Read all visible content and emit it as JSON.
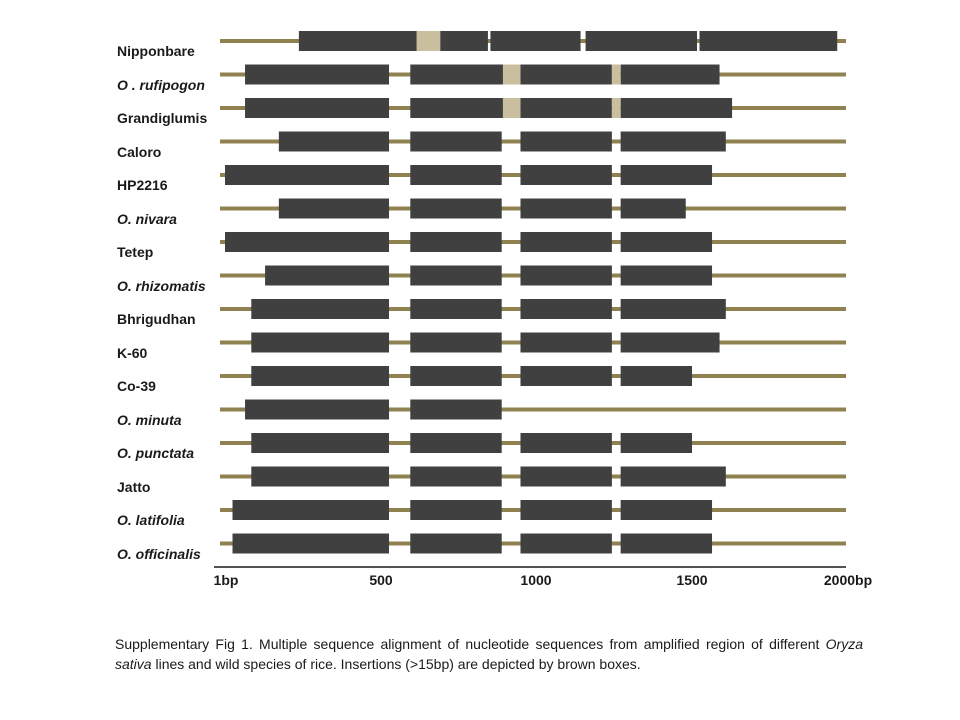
{
  "colors": {
    "backbone": "#8f8250",
    "segment": "#404040",
    "insertion": "#c9bf9e"
  },
  "tracks": [
    {
      "name": "Nipponbare",
      "italic": false,
      "segments": [
        [
          315,
          1070
        ],
        [
          1080,
          1440
        ],
        [
          1460,
          1905
        ],
        [
          1915,
          2465
        ]
      ],
      "insertions": [
        [
          785,
          880
        ]
      ]
    },
    {
      "name": "O . rufipogon",
      "italic": true,
      "segments": [
        [
          100,
          675
        ],
        [
          760,
          1130
        ],
        [
          1200,
          1565
        ],
        [
          1600,
          1995
        ]
      ],
      "insertions": [
        [
          1130,
          1200
        ],
        [
          1565,
          1600
        ]
      ]
    },
    {
      "name": "Grandiglumis",
      "italic": false,
      "segments": [
        [
          100,
          675
        ],
        [
          760,
          1130
        ],
        [
          1200,
          1565
        ],
        [
          1600,
          2045
        ]
      ],
      "insertions": [
        [
          1130,
          1200
        ],
        [
          1565,
          1600
        ]
      ]
    },
    {
      "name": "Caloro",
      "italic": false,
      "segments": [
        [
          235,
          675
        ],
        [
          760,
          1125
        ],
        [
          1200,
          1565
        ],
        [
          1600,
          2020
        ]
      ],
      "insertions": []
    },
    {
      "name": "HP2216",
      "italic": false,
      "segments": [
        [
          20,
          675
        ],
        [
          760,
          1125
        ],
        [
          1200,
          1565
        ],
        [
          1600,
          1965
        ]
      ],
      "insertions": []
    },
    {
      "name": "O. nivara",
      "italic": true,
      "segments": [
        [
          235,
          675
        ],
        [
          760,
          1125
        ],
        [
          1200,
          1565
        ],
        [
          1600,
          1860
        ]
      ],
      "insertions": []
    },
    {
      "name": "Tetep",
      "italic": false,
      "segments": [
        [
          20,
          675
        ],
        [
          760,
          1125
        ],
        [
          1200,
          1565
        ],
        [
          1600,
          1965
        ]
      ],
      "insertions": []
    },
    {
      "name": "O. rhizomatis",
      "italic": true,
      "segments": [
        [
          180,
          675
        ],
        [
          760,
          1125
        ],
        [
          1200,
          1565
        ],
        [
          1600,
          1965
        ]
      ],
      "insertions": []
    },
    {
      "name": "Bhrigudhan",
      "italic": false,
      "segments": [
        [
          125,
          675
        ],
        [
          760,
          1125
        ],
        [
          1200,
          1565
        ],
        [
          1600,
          2020
        ]
      ],
      "insertions": []
    },
    {
      "name": "K-60",
      "italic": false,
      "segments": [
        [
          125,
          675
        ],
        [
          760,
          1125
        ],
        [
          1200,
          1565
        ],
        [
          1600,
          1995
        ]
      ],
      "insertions": []
    },
    {
      "name": "Co-39",
      "italic": false,
      "segments": [
        [
          125,
          675
        ],
        [
          760,
          1125
        ],
        [
          1200,
          1565
        ],
        [
          1600,
          1885
        ]
      ],
      "insertions": []
    },
    {
      "name": "O. minuta",
      "italic": true,
      "segments": [
        [
          100,
          675
        ],
        [
          760,
          1125
        ]
      ],
      "insertions": []
    },
    {
      "name": "O. punctata",
      "italic": true,
      "segments": [
        [
          125,
          675
        ],
        [
          760,
          1125
        ],
        [
          1200,
          1565
        ],
        [
          1600,
          1885
        ]
      ],
      "insertions": []
    },
    {
      "name": "Jatto",
      "italic": false,
      "segments": [
        [
          125,
          675
        ],
        [
          760,
          1125
        ],
        [
          1200,
          1565
        ],
        [
          1600,
          2020
        ]
      ],
      "insertions": []
    },
    {
      "name": "O. latifolia",
      "italic": true,
      "segments": [
        [
          50,
          675
        ],
        [
          760,
          1125
        ],
        [
          1200,
          1565
        ],
        [
          1600,
          1965
        ]
      ],
      "insertions": []
    },
    {
      "name": "O. officinalis",
      "italic": true,
      "segments": [
        [
          50,
          675
        ],
        [
          760,
          1125
        ],
        [
          1200,
          1565
        ],
        [
          1600,
          1965
        ]
      ],
      "insertions": []
    }
  ],
  "axis": {
    "ticks": [
      {
        "value": 1,
        "label": "1bp"
      },
      {
        "value": 500,
        "label": "500"
      },
      {
        "value": 1000,
        "label": "1000"
      },
      {
        "value": 1500,
        "label": "1500"
      },
      {
        "value": 2000,
        "label": "2000bp"
      }
    ]
  },
  "caption": {
    "part1": "Supplementary Fig 1. Multiple sequence alignment of nucleotide sequences from amplified region of different ",
    "species": "Oryza sativa",
    "part2": " lines and wild species of rice. Insertions (>15bp) are depicted by brown boxes."
  }
}
